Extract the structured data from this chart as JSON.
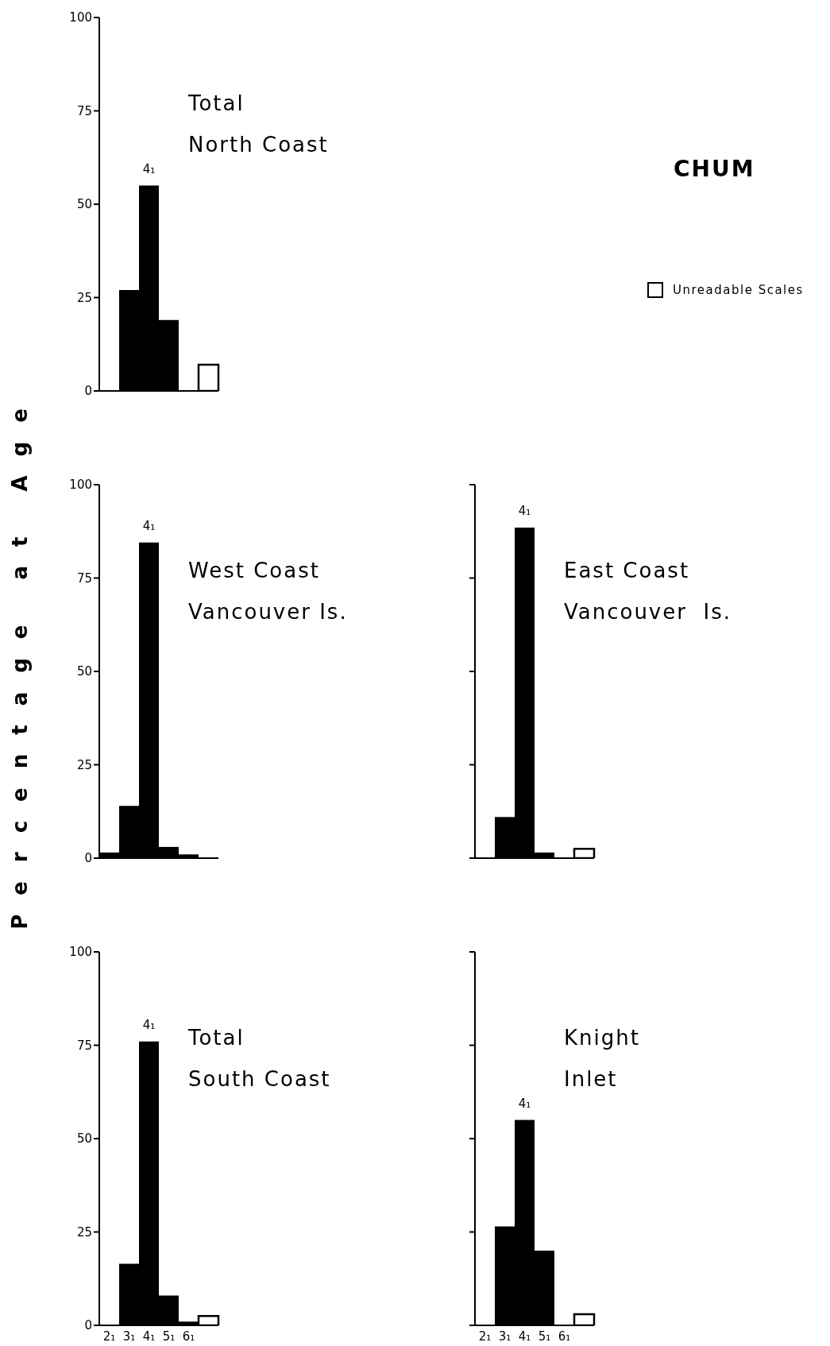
{
  "chart_data": [
    {
      "type": "bar",
      "title": "Total\nNorth Coast",
      "ylabel": "Percentage at Age",
      "categories": [
        "2₁",
        "3₁",
        "4₁",
        "5₁",
        "6₁",
        null
      ],
      "stacked": true,
      "legend": "right",
      "tick_labels": "y",
      "ylim": [
        0,
        100
      ],
      "yticks": [
        0,
        25,
        50,
        75,
        100
      ],
      "series": [
        {
          "color": "#000000",
          "values": [
            0,
            27,
            55,
            19,
            0,
            null
          ]
        },
        {
          "name": "Unreadable Scales",
          "color": "#ffffff",
          "values": [
            null,
            null,
            null,
            null,
            null,
            7
          ]
        }
      ],
      "annotations": [
        "CHUM",
        {
          "text": "4₁",
          "x": "4₁",
          "y": 55
        }
      ]
    },
    {
      "type": "bar",
      "title": "West Coast\nVancouver Is.",
      "categories": [
        "2₁",
        "3₁",
        "4₁",
        "5₁",
        "6₁",
        null
      ],
      "stacked": true,
      "tick_labels": "y",
      "ylim": [
        0,
        100
      ],
      "yticks": [
        0,
        25,
        50,
        75,
        100
      ],
      "series": [
        {
          "color": "#000000",
          "values": [
            1.5,
            14,
            84.5,
            3,
            1,
            null
          ]
        },
        {
          "color": "#ffffff",
          "values": [
            null,
            null,
            null,
            null,
            null,
            0
          ]
        }
      ],
      "annotations": [
        {
          "text": "4₁",
          "x": "4₁",
          "y": 84.5
        }
      ]
    },
    {
      "type": "bar",
      "title": "East Coast\nVancouver  Is.",
      "categories": [
        "2₁",
        "3₁",
        "4₁",
        "5₁",
        "6₁",
        null
      ],
      "stacked": true,
      "tick_labels": false,
      "ylim": [
        0,
        100
      ],
      "yticks": [
        0,
        25,
        50,
        75,
        100
      ],
      "series": [
        {
          "color": "#000000",
          "values": [
            0,
            11,
            88.5,
            1.5,
            0,
            null
          ]
        },
        {
          "color": "#ffffff",
          "values": [
            null,
            null,
            null,
            null,
            null,
            2.5
          ]
        }
      ],
      "annotations": [
        {
          "text": "4₁",
          "x": "4₁",
          "y": 88.5
        }
      ]
    },
    {
      "type": "bar",
      "title": "Total\nSouth Coast",
      "categories": [
        "2₁",
        "3₁",
        "4₁",
        "5₁",
        "6₁",
        null
      ],
      "stacked": true,
      "ylim": [
        0,
        100
      ],
      "yticks": [
        0,
        25,
        50,
        75,
        100
      ],
      "series": [
        {
          "color": "#000000",
          "values": [
            0,
            16.5,
            76,
            8,
            1,
            null
          ]
        },
        {
          "color": "#ffffff",
          "values": [
            null,
            null,
            null,
            null,
            null,
            2.5
          ]
        }
      ],
      "annotations": [
        {
          "text": "4₁",
          "x": "4₁",
          "y": 76
        }
      ]
    },
    {
      "type": "bar",
      "title": "Knight\nInlet",
      "categories": [
        "2₁",
        "3₁",
        "4₁",
        "5₁",
        "6₁",
        null
      ],
      "stacked": true,
      "tick_labels": "x",
      "ylim": [
        0,
        100
      ],
      "yticks": [
        0,
        25,
        50,
        75,
        100
      ],
      "series": [
        {
          "color": "#000000",
          "values": [
            0,
            26.5,
            55,
            20,
            0,
            null
          ]
        },
        {
          "color": "#ffffff",
          "values": [
            null,
            null,
            null,
            null,
            null,
            3
          ]
        }
      ],
      "annotations": [
        {
          "text": "4₁",
          "x": "4₁",
          "y": 55
        }
      ]
    }
  ]
}
